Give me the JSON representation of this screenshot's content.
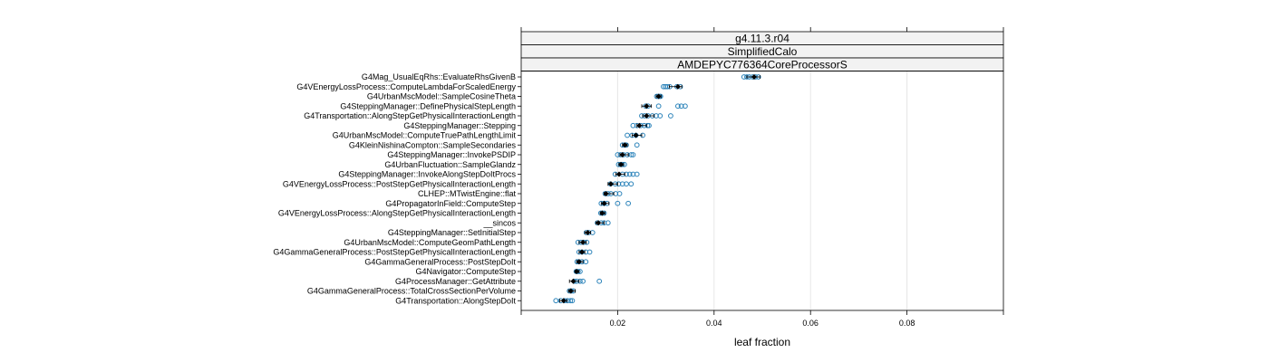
{
  "chart_data": {
    "type": "scatter",
    "strips": [
      "g4.11.3.r04",
      "SimplifiedCalo",
      "AMDEPYC776364CoreProcessorS"
    ],
    "xlabel": "leaf fraction",
    "xlim": [
      0.0,
      0.1
    ],
    "xticks": [
      0.02,
      0.04,
      0.06,
      0.08
    ],
    "xtick_labels": [
      "0.02",
      "0.04",
      "0.06",
      "0.08"
    ],
    "grid": true,
    "colors": {
      "points": "#2b83ba",
      "summary": "#000000",
      "strip_bg": "#f2f2f2",
      "grid": "#e6e6e6"
    },
    "categories": [
      {
        "name": "G4Mag_UsualEqRhs::EvaluateRhsGivenB",
        "median": 0.0483,
        "low": 0.0468,
        "high": 0.0495,
        "points": [
          0.0462,
          0.0468,
          0.0473,
          0.048,
          0.0486,
          0.0492
        ]
      },
      {
        "name": "G4VEnergyLossProcess::ComputeLambdaForScaledEnergy",
        "median": 0.0325,
        "low": 0.0307,
        "high": 0.0333,
        "points": [
          0.0295,
          0.0299,
          0.0303,
          0.0308,
          0.0323,
          0.033
        ]
      },
      {
        "name": "G4UrbanMscModel::SampleCosineTheta",
        "median": 0.0285,
        "low": 0.028,
        "high": 0.029,
        "points": [
          0.0281,
          0.0284,
          0.0287,
          0.0289
        ]
      },
      {
        "name": "G4SteppingManager::DefinePhysicalStepLength",
        "median": 0.026,
        "low": 0.025,
        "high": 0.027,
        "points": [
          0.0258,
          0.0263,
          0.0285,
          0.0325,
          0.0332,
          0.034
        ]
      },
      {
        "name": "G4Transportation::AlongStepGetPhysicalInteractionLength",
        "median": 0.026,
        "low": 0.0252,
        "high": 0.0275,
        "points": [
          0.025,
          0.0256,
          0.0263,
          0.0272,
          0.028,
          0.0288,
          0.031
        ]
      },
      {
        "name": "G4SteppingManager::Stepping",
        "median": 0.0245,
        "low": 0.024,
        "high": 0.026,
        "points": [
          0.0232,
          0.024,
          0.0248,
          0.0255,
          0.0262,
          0.0265
        ]
      },
      {
        "name": "G4UrbanMscModel::ComputeTruePathLengthLimit",
        "median": 0.0238,
        "low": 0.023,
        "high": 0.025,
        "points": [
          0.022,
          0.023,
          0.0238,
          0.0252
        ]
      },
      {
        "name": "G4KleinNishinaCompton::SampleSecondaries",
        "median": 0.0215,
        "low": 0.021,
        "high": 0.022,
        "points": [
          0.021,
          0.0215,
          0.0218,
          0.024
        ]
      },
      {
        "name": "G4SteppingManager::InvokePSDIP",
        "median": 0.021,
        "low": 0.0205,
        "high": 0.0222,
        "points": [
          0.02,
          0.0206,
          0.0212,
          0.022,
          0.0228,
          0.0232
        ]
      },
      {
        "name": "G4UrbanFluctuation::SampleGlandz",
        "median": 0.0207,
        "low": 0.0203,
        "high": 0.0212,
        "points": [
          0.0202,
          0.0206,
          0.021,
          0.0214
        ]
      },
      {
        "name": "G4SteppingManager::InvokeAlongStepDoItProcs",
        "median": 0.0203,
        "low": 0.0196,
        "high": 0.0215,
        "points": [
          0.0195,
          0.021,
          0.0218,
          0.0225,
          0.0232,
          0.024
        ]
      },
      {
        "name": "G4VEnergyLossProcess::PostStepGetPhysicalInteractionLength",
        "median": 0.0186,
        "low": 0.018,
        "high": 0.02,
        "points": [
          0.0185,
          0.0195,
          0.0202,
          0.021,
          0.0218,
          0.0228
        ]
      },
      {
        "name": "CLHEP::MTwistEngine::flat",
        "median": 0.0176,
        "low": 0.0172,
        "high": 0.0192,
        "points": [
          0.0174,
          0.018,
          0.0186,
          0.0196,
          0.0204
        ]
      },
      {
        "name": "G4PropagatorInField::ComputeStep",
        "median": 0.0172,
        "low": 0.0166,
        "high": 0.0182,
        "points": [
          0.0166,
          0.0172,
          0.0178,
          0.02,
          0.0222
        ]
      },
      {
        "name": "G4VEnergyLossProcess::AlongStepGetPhysicalInteractionLength",
        "median": 0.0168,
        "low": 0.0164,
        "high": 0.0174,
        "points": [
          0.0165,
          0.0168,
          0.0172
        ]
      },
      {
        "name": "__sincos",
        "median": 0.016,
        "low": 0.0155,
        "high": 0.0172,
        "points": [
          0.0158,
          0.0166,
          0.0172,
          0.018
        ]
      },
      {
        "name": "G4SteppingManager::SetInitialStep",
        "median": 0.0138,
        "low": 0.0132,
        "high": 0.0144,
        "points": [
          0.0135,
          0.014,
          0.0148
        ]
      },
      {
        "name": "G4UrbanMscModel::ComputeGeomPathLength",
        "median": 0.0128,
        "low": 0.012,
        "high": 0.0135,
        "points": [
          0.0118,
          0.0124,
          0.013,
          0.0136
        ]
      },
      {
        "name": "G4GammaGeneralProcess::PostStepGetPhysicalInteractionLength",
        "median": 0.0126,
        "low": 0.012,
        "high": 0.0132,
        "points": [
          0.012,
          0.0126,
          0.0134,
          0.0142
        ]
      },
      {
        "name": "G4GammaGeneralProcess::PostStepDoIt",
        "median": 0.012,
        "low": 0.0115,
        "high": 0.0128,
        "points": [
          0.0116,
          0.012,
          0.0126,
          0.0134
        ]
      },
      {
        "name": "G4Navigator::ComputeStep",
        "median": 0.0115,
        "low": 0.0112,
        "high": 0.012,
        "points": [
          0.0114,
          0.0118,
          0.0122
        ]
      },
      {
        "name": "G4ProcessManager::GetAttribute",
        "median": 0.0108,
        "low": 0.01,
        "high": 0.012,
        "points": [
          0.011,
          0.0115,
          0.0122,
          0.0128,
          0.0162
        ]
      },
      {
        "name": "G4GammaGeneralProcess::TotalCrossSectionPerVolume",
        "median": 0.0103,
        "low": 0.0098,
        "high": 0.0112,
        "points": [
          0.01,
          0.0104,
          0.0108
        ]
      },
      {
        "name": "G4Transportation::AlongStepDoIt",
        "median": 0.0088,
        "low": 0.008,
        "high": 0.0095,
        "points": [
          0.0072,
          0.0082,
          0.009,
          0.0096,
          0.0102,
          0.0106
        ]
      }
    ]
  }
}
